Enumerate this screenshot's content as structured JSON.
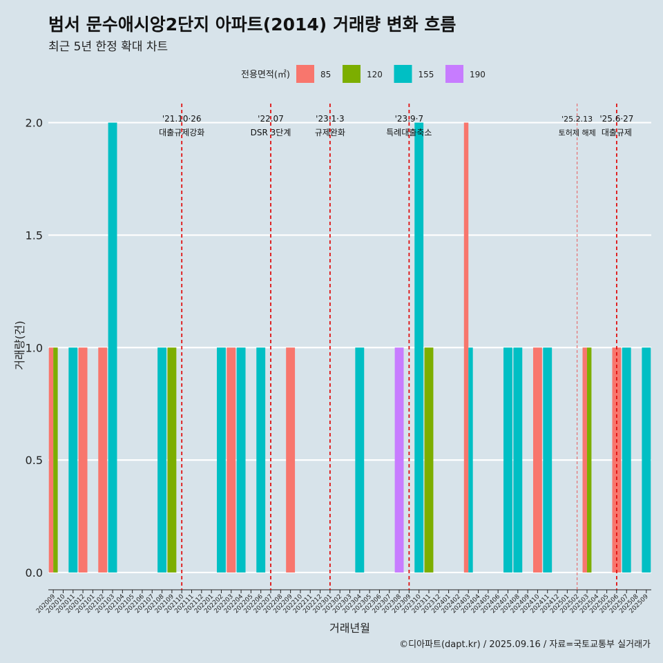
{
  "header": {
    "title": "범서 문수애시앙2단지 아파트(2014) 거래량 변화 흐름",
    "subtitle": "최근 5년 한정 확대 차트"
  },
  "footer": {
    "caption": "©디아파트(dapt.kr) / 2025.09.16 / 자료=국토교통부 실거래가"
  },
  "chart_data": {
    "type": "bar",
    "xlabel": "거래년월",
    "ylabel": "거래량(건)",
    "ylim": [
      -0.08,
      2.1
    ],
    "yticks": [
      0.0,
      0.5,
      1.0,
      1.5,
      2.0
    ],
    "ytick_labels": [
      "0.0",
      "0.5",
      "1.0",
      "1.5",
      "2.0"
    ],
    "grid": true,
    "legend": {
      "title": "전용면적(㎡)",
      "position": "top",
      "entries": [
        {
          "label": "85",
          "color": "#F8766D"
        },
        {
          "label": "120",
          "color": "#7CAE00"
        },
        {
          "label": "155",
          "color": "#00BFC4"
        },
        {
          "label": "190",
          "color": "#C77CFF"
        }
      ]
    },
    "categories": [
      "202009",
      "202010",
      "202011",
      "202012",
      "202101",
      "202102",
      "202103",
      "202104",
      "202105",
      "202106",
      "202107",
      "202108",
      "202109",
      "202110",
      "202111",
      "202112",
      "202201",
      "202202",
      "202203",
      "202204",
      "202205",
      "202206",
      "202207",
      "202208",
      "202209",
      "202210",
      "202211",
      "202212",
      "202301",
      "202302",
      "202303",
      "202304",
      "202305",
      "202306",
      "202307",
      "202308",
      "202309",
      "202310",
      "202311",
      "202312",
      "202401",
      "202402",
      "202403",
      "202404",
      "202405",
      "202406",
      "202407",
      "202408",
      "202409",
      "202410",
      "202411",
      "202412",
      "202501",
      "202502",
      "202503",
      "202504",
      "202505",
      "202506",
      "202507",
      "202508",
      "202509"
    ],
    "series": [
      {
        "name": "85",
        "color": "#F8766D",
        "points": [
          [
            "202009",
            1
          ],
          [
            "202012",
            1
          ],
          [
            "202102",
            1
          ],
          [
            "202203",
            1
          ],
          [
            "202209",
            1
          ],
          [
            "202403",
            2
          ],
          [
            "202410",
            1
          ],
          [
            "202503",
            1
          ],
          [
            "202506",
            1
          ]
        ]
      },
      {
        "name": "120",
        "color": "#7CAE00",
        "points": [
          [
            "202009",
            1
          ],
          [
            "202109",
            1
          ],
          [
            "202311",
            1
          ],
          [
            "202503",
            1
          ]
        ]
      },
      {
        "name": "155",
        "color": "#00BFC4",
        "points": [
          [
            "202011",
            1
          ],
          [
            "202103",
            2
          ],
          [
            "202108",
            1
          ],
          [
            "202202",
            1
          ],
          [
            "202204",
            1
          ],
          [
            "202206",
            1
          ],
          [
            "202304",
            1
          ],
          [
            "202310",
            2
          ],
          [
            "202403",
            1
          ],
          [
            "202407",
            1
          ],
          [
            "202408",
            1
          ],
          [
            "202411",
            1
          ],
          [
            "202507",
            1
          ],
          [
            "202509",
            1
          ]
        ]
      },
      {
        "name": "190",
        "color": "#C77CFF",
        "points": [
          [
            "202308",
            1
          ]
        ]
      }
    ],
    "annotations": [
      {
        "x": "202110",
        "date": "'21.10·26",
        "label": "대출규제강화",
        "style": "bold"
      },
      {
        "x": "202207",
        "date": "'22.07",
        "label": "DSR 3단계",
        "style": "bold"
      },
      {
        "x": "202301",
        "date": "'23.1·3",
        "label": "규제완화",
        "style": "bold"
      },
      {
        "x": "202309",
        "date": "'23.9·7",
        "label": "특례대출축소",
        "style": "bold"
      },
      {
        "x": "202502",
        "date": "'25.2.13",
        "label": "토허제 해제",
        "style": "thin"
      },
      {
        "x": "202506",
        "date": "'25.6·27",
        "label": "대출규제",
        "style": "bold"
      }
    ]
  }
}
